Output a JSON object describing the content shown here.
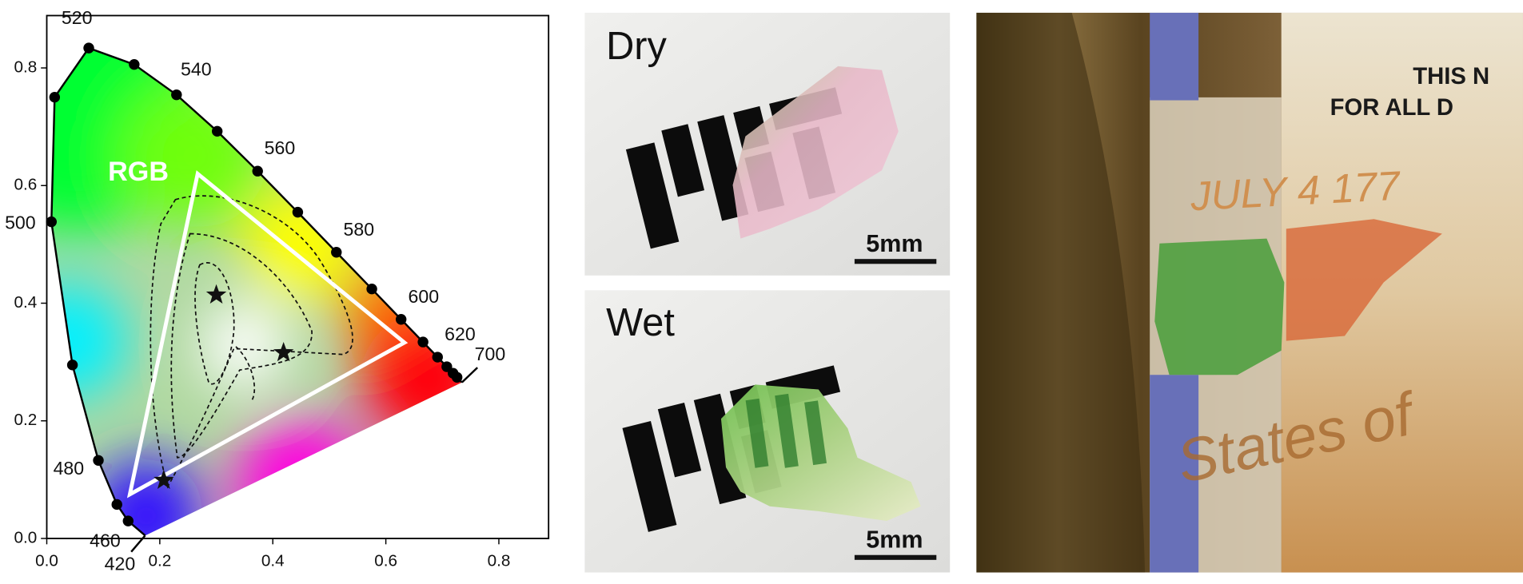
{
  "chart_data": {
    "type": "chromaticity",
    "xlim": [
      0,
      0.888
    ],
    "ylim": [
      0,
      0.889
    ],
    "xticks": [
      {
        "value": 0,
        "label": "0.0"
      },
      0.2,
      0.4,
      0.6,
      0.8
    ],
    "yticks": [
      {
        "value": 0,
        "label": "0.0"
      },
      0.2,
      0.4,
      0.6,
      0.8
    ],
    "locus": {
      "wavelengths": [
        420,
        460,
        null,
        480,
        null,
        500,
        null,
        520,
        null,
        540,
        null,
        560,
        null,
        580,
        null,
        600,
        null,
        620,
        null,
        null,
        null,
        700
      ],
      "x": [
        0.1741,
        0.144,
        0.1241,
        0.0913,
        0.0454,
        0.0082,
        0.0139,
        0.0743,
        0.1547,
        0.2296,
        0.3016,
        0.3731,
        0.4441,
        0.5125,
        0.5752,
        0.627,
        0.6658,
        0.6915,
        0.7079,
        0.719,
        0.726,
        0.7347
      ],
      "y": [
        0.005,
        0.0297,
        0.0578,
        0.1327,
        0.295,
        0.5384,
        0.7502,
        0.8338,
        0.8059,
        0.7543,
        0.6923,
        0.6245,
        0.5547,
        0.4866,
        0.4242,
        0.3725,
        0.334,
        0.3083,
        0.292,
        0.2809,
        0.274,
        0.2653
      ],
      "color": "#000000"
    },
    "rgb_gamut": {
      "label": "RGB",
      "x": [
        0.267,
        0.633,
        0.147
      ],
      "y": [
        0.62,
        0.333,
        0.075
      ],
      "color": "#ffffff"
    },
    "points": {
      "x": [
        0.3,
        0.419,
        0.207
      ],
      "y": [
        0.414,
        0.316,
        0.099
      ],
      "color": "#111111"
    }
  },
  "photos": {
    "dry": {
      "label": "Dry",
      "scale": "5mm"
    },
    "wet": {
      "label": "Wet",
      "scale": "5mm"
    },
    "banknote": {
      "texts": [
        "THIS N",
        "FOR ALL D",
        "JULY 4 177",
        "States of"
      ]
    }
  }
}
